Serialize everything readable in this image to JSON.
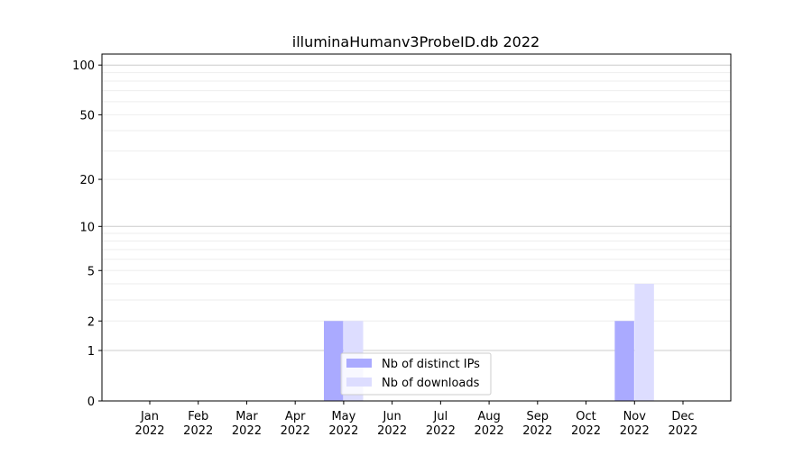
{
  "chart_data": {
    "type": "bar",
    "title": "illuminaHumanv3ProbeID.db 2022",
    "xlabel": "",
    "ylabel": "",
    "y_scale": "log(1+y)",
    "ylim": [
      0,
      116
    ],
    "y_ticks": [
      0,
      1,
      2,
      5,
      10,
      20,
      50,
      100
    ],
    "y_tick_labels": [
      "0",
      "1",
      "2",
      "5",
      "10",
      "20",
      "50",
      "100"
    ],
    "grid": true,
    "categories": [
      "Jan\n2022",
      "Feb\n2022",
      "Mar\n2022",
      "Apr\n2022",
      "May\n2022",
      "Jun\n2022",
      "Jul\n2022",
      "Aug\n2022",
      "Sep\n2022",
      "Oct\n2022",
      "Nov\n2022",
      "Dec\n2022"
    ],
    "series": [
      {
        "name": "Nb of distinct IPs",
        "color": "#aaaaff",
        "values": [
          0,
          0,
          0,
          0,
          2,
          0,
          0,
          0,
          0,
          0,
          2,
          0
        ]
      },
      {
        "name": "Nb of downloads",
        "color": "#ddddff",
        "values": [
          0,
          0,
          0,
          0,
          2,
          0,
          0,
          0,
          0,
          0,
          4,
          0
        ]
      }
    ],
    "legend_position": "bottom-center"
  }
}
